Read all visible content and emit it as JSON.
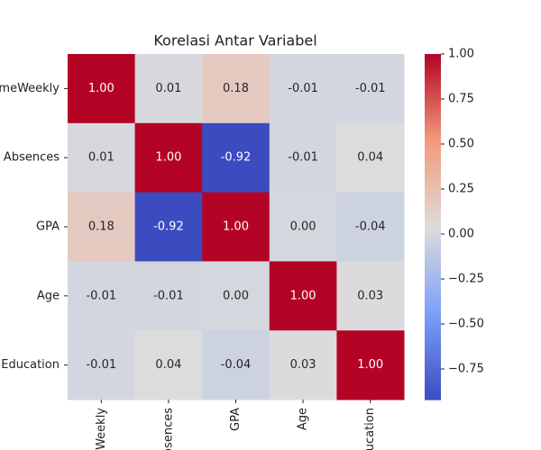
{
  "chart_data": {
    "type": "heatmap",
    "title": "Korelasi Antar Variabel",
    "x_categories": [
      "Weekly",
      "bsences",
      "GPA",
      "Age",
      "ucation"
    ],
    "y_categories": [
      "meWeekly",
      "Absences",
      "GPA",
      "Age",
      "Education"
    ],
    "values": [
      [
        1.0,
        0.01,
        0.18,
        -0.01,
        -0.01
      ],
      [
        0.01,
        1.0,
        -0.92,
        -0.01,
        0.04
      ],
      [
        0.18,
        -0.92,
        1.0,
        0.0,
        -0.04
      ],
      [
        -0.01,
        -0.01,
        0.0,
        1.0,
        0.03
      ],
      [
        -0.01,
        0.04,
        -0.04,
        0.03,
        1.0
      ]
    ],
    "value_labels": [
      [
        "1.00",
        "0.01",
        "0.18",
        "-0.01",
        "-0.01"
      ],
      [
        "0.01",
        "1.00",
        "-0.92",
        "-0.01",
        "0.04"
      ],
      [
        "0.18",
        "-0.92",
        "1.00",
        "0.00",
        "-0.04"
      ],
      [
        "-0.01",
        "-0.01",
        "0.00",
        "1.00",
        "0.03"
      ],
      [
        "-0.01",
        "0.04",
        "-0.04",
        "0.03",
        "1.00"
      ]
    ],
    "cmap": "coolwarm",
    "clim": [
      -0.92,
      1.0
    ],
    "cticks": [
      {
        "value": 1.0,
        "label": "1.00"
      },
      {
        "value": 0.75,
        "label": "0.75"
      },
      {
        "value": 0.5,
        "label": "0.50"
      },
      {
        "value": 0.25,
        "label": "0.25"
      },
      {
        "value": 0,
        "label": "0.00"
      },
      {
        "value": -0.25,
        "label": "−0.25"
      },
      {
        "value": -0.5,
        "label": "−0.50"
      },
      {
        "value": -0.75,
        "label": "−0.75"
      }
    ]
  }
}
